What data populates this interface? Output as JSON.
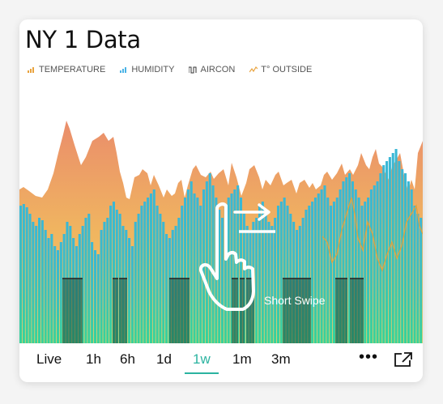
{
  "title": "NY 1 Data",
  "legend": [
    {
      "label": "TEMPERATURE",
      "icon": "bar-chart-icon",
      "color": "#e9a33e"
    },
    {
      "label": "HUMIDITY",
      "icon": "bar-chart-icon",
      "color": "#4ab3e6"
    },
    {
      "label": "AIRCON",
      "icon": "step-line-icon",
      "color": "#333333"
    },
    {
      "label": "T° OUTSIDE",
      "icon": "line-chart-icon",
      "color": "#e9a33e"
    }
  ],
  "gesture": {
    "label": "Short Swipe",
    "icon": "swipe-hand-icon"
  },
  "tabs": [
    {
      "label": "Live"
    },
    {
      "label": "1h"
    },
    {
      "label": "6h"
    },
    {
      "label": "1d"
    },
    {
      "label": "1w",
      "active": true
    },
    {
      "label": "1m"
    },
    {
      "label": "3m"
    }
  ],
  "actions": {
    "more_icon": "more-dots-icon",
    "expand_icon": "expand-icon",
    "more_label": "•••"
  },
  "colors": {
    "accent": "#2bb3a0",
    "temperature": "#e9a33e",
    "humidity": "#3ec3c9",
    "aircon": "#1e4b3c"
  }
}
